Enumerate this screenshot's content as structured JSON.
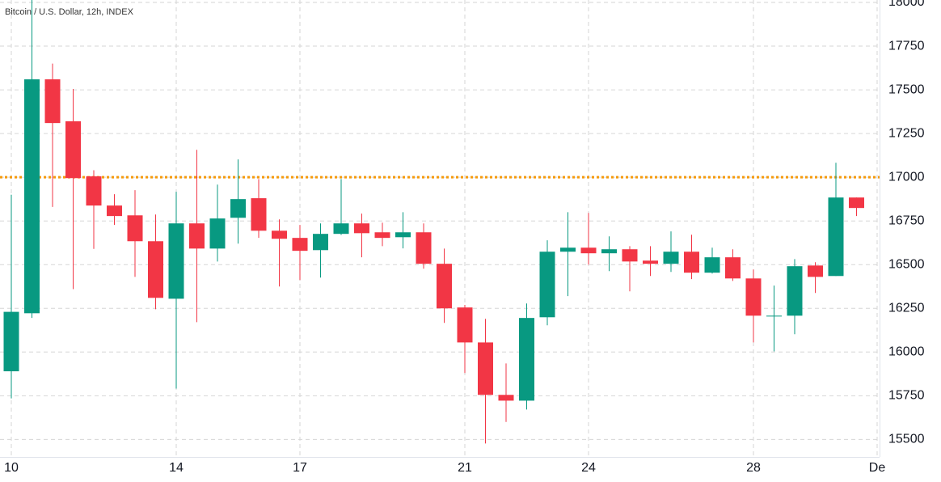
{
  "chart_data": {
    "type": "candlestick",
    "title": "Bitcoin / U.S. Dollar, 12h, INDEX",
    "categories": [
      "10",
      null,
      null,
      null,
      null,
      null,
      null,
      null,
      "14",
      null,
      null,
      null,
      null,
      null,
      "17",
      null,
      null,
      null,
      null,
      null,
      null,
      null,
      "21",
      null,
      null,
      null,
      null,
      null,
      "24",
      null,
      null,
      null,
      null,
      null,
      null,
      null,
      "28",
      null,
      null,
      null,
      null,
      null,
      "De"
    ],
    "open": [
      15890,
      16222,
      17560,
      17320,
      17005,
      16838,
      16782,
      16634,
      16305,
      16736,
      16592,
      16768,
      16880,
      16694,
      16653,
      16583,
      16676,
      16736,
      16685,
      16657,
      16685,
      16505,
      16255,
      16055,
      15755,
      15722,
      16199,
      16574,
      16597,
      16565,
      16588,
      16523,
      16505,
      16574,
      16454,
      16542,
      16421,
      16208,
      16208,
      16495,
      16435,
      16884,
      null
    ],
    "high": [
      16900,
      18020,
      17650,
      17505,
      17040,
      16903,
      16926,
      16787,
      16917,
      17157,
      16958,
      17102,
      16990,
      16759,
      16727,
      16736,
      16990,
      16792,
      16740,
      16800,
      16736,
      16592,
      16270,
      16190,
      15935,
      16278,
      16639,
      16800,
      16796,
      16662,
      16606,
      16606,
      16690,
      16671,
      16597,
      16588,
      16472,
      16380,
      16532,
      16514,
      17083,
      16884,
      null
    ],
    "low": [
      15735,
      16195,
      16830,
      16360,
      16590,
      16727,
      16430,
      16245,
      15791,
      16171,
      16518,
      16620,
      16653,
      16375,
      16412,
      16426,
      16670,
      16542,
      16606,
      16593,
      16477,
      16167,
      15880,
      15477,
      15600,
      15671,
      16153,
      16320,
      16500,
      16463,
      16347,
      16435,
      16458,
      16417,
      16449,
      16407,
      16055,
      16004,
      16102,
      16338,
      16435,
      16778,
      null
    ],
    "close": [
      16230,
      17560,
      17310,
      16995,
      16838,
      16778,
      16634,
      16310,
      16736,
      16592,
      16764,
      16875,
      16694,
      16648,
      16579,
      16676,
      16736,
      16680,
      16653,
      16685,
      16505,
      16250,
      16055,
      15755,
      15722,
      16195,
      16574,
      16597,
      16565,
      16588,
      16518,
      16505,
      16574,
      16454,
      16542,
      16421,
      16208,
      16208,
      16491,
      16430,
      16884,
      16824,
      null
    ],
    "up_color": "#089981",
    "down_color": "#f23645",
    "price_line": {
      "value": 17000,
      "color": "#f59a0c"
    },
    "ylim": [
      15400,
      18000
    ],
    "yticks": [
      15500,
      15750,
      16000,
      16250,
      16500,
      16750,
      17000,
      17250,
      17500,
      17750,
      18000
    ],
    "grid": true
  }
}
